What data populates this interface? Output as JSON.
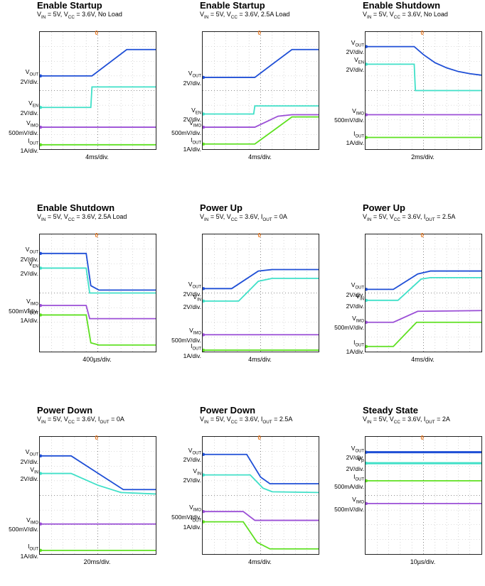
{
  "colors": {
    "vout": "#1f4fd6",
    "ven": "#40e0c8",
    "imo": "#9b4fd6",
    "iout": "#5ee020",
    "vp": "#5ee020",
    "trigger": "#e8761e"
  },
  "panels": [
    {
      "title": "Enable Startup",
      "sub": "VIN = 5V, VCC = 3.6V, No Load",
      "timebase": "4ms/div.",
      "trigger_label": "0",
      "labels": [
        {
          "name": "VOUT",
          "scale": "2V/div."
        },
        {
          "name": "VEN",
          "scale": "2V/div."
        },
        {
          "name": "VIMO",
          "scale": "500mV/div."
        },
        {
          "name": "IOUT",
          "scale": "1A/div."
        }
      ]
    },
    {
      "title": "Enable Startup",
      "sub": "VIN = 5V, VCC = 3.6V, 2.5A Load",
      "timebase": "4ms/div.",
      "trigger_label": "0",
      "labels": [
        {
          "name": "VOUT",
          "scale": "2V/div."
        },
        {
          "name": "VEN",
          "scale": "2V/div."
        },
        {
          "name": "VIMO",
          "scale": "500mV/div."
        },
        {
          "name": "IOUT",
          "scale": "1A/div."
        }
      ]
    },
    {
      "title": "Enable Shutdown",
      "sub": "VIN = 5V, VCC = 3.6V, No Load",
      "timebase": "2ms/div.",
      "trigger_label": "0",
      "labels": [
        {
          "name": "VOUT",
          "scale": "2V/div."
        },
        {
          "name": "VEN",
          "scale": "2V/div."
        },
        {
          "name": "VIMO",
          "scale": "500mV/div."
        },
        {
          "name": "IOUT",
          "scale": "1A/div."
        }
      ]
    },
    {
      "title": "Enable Shutdown",
      "sub": "VIN = 5V, VCC = 3.6V, 2.5A Load",
      "timebase": "400µs/div.",
      "trigger_label": "0",
      "labels": [
        {
          "name": "VOUT",
          "scale": "2V/div."
        },
        {
          "name": "VEN",
          "scale": "2V/div."
        },
        {
          "name": "VIMO",
          "scale": "500mV/div."
        },
        {
          "name": "IOUT",
          "scale": "1A/div."
        }
      ]
    },
    {
      "title": "Power Up",
      "sub": "VIN = 5V, VCC = 3.6V, IOUT = 0A",
      "timebase": "4ms/div.",
      "trigger_label": "0",
      "labels": [
        {
          "name": "VOUT",
          "scale": "2V/div."
        },
        {
          "name": "VIN",
          "scale": "2V/div."
        },
        {
          "name": "VIMO",
          "scale": "500mV/div."
        },
        {
          "name": "IOUT",
          "scale": "1A/div."
        }
      ]
    },
    {
      "title": "Power Up",
      "sub": "VIN = 5V, VCC = 3.6V, IOUT = 2.5A",
      "timebase": "4ms/div.",
      "trigger_label": "0",
      "labels": [
        {
          "name": "VOUT",
          "scale": "2V/div."
        },
        {
          "name": "VIN",
          "scale": "2V/div."
        },
        {
          "name": "VIMO",
          "scale": "500mV/div."
        },
        {
          "name": "IOUT",
          "scale": "1A/div."
        }
      ]
    },
    {
      "title": "Power Down",
      "sub": "VIN = 5V, VCC = 3.6V, IOUT = 0A",
      "timebase": "20ms/div.",
      "trigger_label": "0",
      "labels": [
        {
          "name": "VOUT",
          "scale": "2V/div."
        },
        {
          "name": "VIN",
          "scale": "2V/div."
        },
        {
          "name": "VIMO",
          "scale": "500mV/div."
        },
        {
          "name": "IOUT",
          "scale": "1A/div."
        }
      ]
    },
    {
      "title": "Power Down",
      "sub": "VIN = 5V, VCC = 3.6V, IOUT = 2.5A",
      "timebase": "4ms/div.",
      "trigger_label": "0",
      "labels": [
        {
          "name": "VOUT",
          "scale": "2V/div."
        },
        {
          "name": "VIN",
          "scale": "2V/div."
        },
        {
          "name": "VIMO",
          "scale": "500mV/div."
        },
        {
          "name": "IOUT",
          "scale": "1A/div."
        }
      ]
    },
    {
      "title": "Steady State",
      "sub": "VIN = 5V, VCC = 3.6V, IOUT = 2A",
      "timebase": "10µs/div.",
      "trigger_label": "0",
      "labels": [
        {
          "name": "VOUT",
          "scale": "2V/div."
        },
        {
          "name": "VP",
          "scale": "2V/div."
        },
        {
          "name": "VIMO",
          "scale": "500mV/div."
        },
        {
          "name": "IOUT",
          "scale": "500mA/div."
        }
      ]
    }
  ],
  "chart_data": [
    {
      "type": "line",
      "series": [
        {
          "name": "VOUT",
          "color": "vout",
          "points": [
            [
              0,
              2
            ],
            [
              4.5,
              2
            ],
            [
              7.5,
              5.6
            ],
            [
              10,
              5.6
            ]
          ]
        },
        {
          "name": "VEN",
          "color": "ven",
          "points": [
            [
              0,
              -2.3
            ],
            [
              4.4,
              -2.3
            ],
            [
              4.5,
              0.5
            ],
            [
              10,
              0.5
            ]
          ]
        },
        {
          "name": "VIMO",
          "color": "imo",
          "points": [
            [
              0,
              -5
            ],
            [
              10,
              -5
            ]
          ]
        },
        {
          "name": "IOUT",
          "color": "iout",
          "points": [
            [
              0,
              -7.4
            ],
            [
              10,
              -7.4
            ]
          ]
        }
      ]
    },
    {
      "type": "line",
      "series": [
        {
          "name": "VOUT",
          "color": "vout",
          "points": [
            [
              0,
              1.8
            ],
            [
              4.5,
              1.8
            ],
            [
              7.7,
              5.6
            ],
            [
              10,
              5.6
            ]
          ]
        },
        {
          "name": "VEN",
          "color": "ven",
          "points": [
            [
              0,
              -3.2
            ],
            [
              4.4,
              -3.2
            ],
            [
              4.5,
              -2.1
            ],
            [
              10,
              -2.1
            ]
          ]
        },
        {
          "name": "VIMO",
          "color": "imo",
          "points": [
            [
              0,
              -5
            ],
            [
              4.5,
              -5
            ],
            [
              6.5,
              -3.5
            ],
            [
              7.7,
              -3.3
            ],
            [
              10,
              -3.3
            ]
          ]
        },
        {
          "name": "IOUT",
          "color": "iout",
          "points": [
            [
              0,
              -7.3
            ],
            [
              4.5,
              -7.3
            ],
            [
              7.7,
              -3.6
            ],
            [
              10,
              -3.6
            ]
          ]
        }
      ]
    },
    {
      "type": "line",
      "series": [
        {
          "name": "VOUT",
          "color": "vout",
          "points": [
            [
              0,
              6
            ],
            [
              4.2,
              6
            ],
            [
              5,
              4.9
            ],
            [
              6,
              3.8
            ],
            [
              7,
              3.1
            ],
            [
              8,
              2.6
            ],
            [
              9,
              2.3
            ],
            [
              10,
              2.1
            ]
          ]
        },
        {
          "name": "VEN",
          "color": "ven",
          "points": [
            [
              0,
              3.6
            ],
            [
              4.2,
              3.6
            ],
            [
              4.3,
              0
            ],
            [
              10,
              0
            ]
          ]
        },
        {
          "name": "VIMO",
          "color": "imo",
          "points": [
            [
              0,
              -3.3
            ],
            [
              10,
              -3.3
            ]
          ]
        },
        {
          "name": "IOUT",
          "color": "iout",
          "points": [
            [
              0,
              -6.4
            ],
            [
              10,
              -6.4
            ]
          ]
        }
      ]
    },
    {
      "type": "line",
      "series": [
        {
          "name": "VOUT",
          "color": "vout",
          "points": [
            [
              0,
              5.4
            ],
            [
              4,
              5.4
            ],
            [
              4.4,
              1
            ],
            [
              5.1,
              0.4
            ],
            [
              10,
              0.4
            ]
          ]
        },
        {
          "name": "VEN",
          "color": "ven",
          "points": [
            [
              0,
              3.4
            ],
            [
              4,
              3.4
            ],
            [
              4.3,
              0
            ],
            [
              10,
              0
            ]
          ]
        },
        {
          "name": "VIMO",
          "color": "imo",
          "points": [
            [
              0,
              -1.7
            ],
            [
              4,
              -1.7
            ],
            [
              4.3,
              -3.5
            ],
            [
              10,
              -3.5
            ]
          ]
        },
        {
          "name": "IOUT",
          "color": "iout",
          "points": [
            [
              0,
              -3
            ],
            [
              4,
              -3
            ],
            [
              4.4,
              -6.8
            ],
            [
              5.1,
              -7.1
            ],
            [
              10,
              -7.1
            ]
          ]
        }
      ]
    },
    {
      "type": "line",
      "series": [
        {
          "name": "VOUT",
          "color": "vout",
          "points": [
            [
              0,
              0.6
            ],
            [
              2.5,
              0.6
            ],
            [
              4.8,
              3
            ],
            [
              6,
              3.2
            ],
            [
              10,
              3.2
            ]
          ]
        },
        {
          "name": "VIN",
          "color": "ven",
          "points": [
            [
              0,
              -1.1
            ],
            [
              3.1,
              -1.1
            ],
            [
              4.8,
              1.6
            ],
            [
              6,
              2
            ],
            [
              10,
              2
            ]
          ]
        },
        {
          "name": "VIMO",
          "color": "imo",
          "points": [
            [
              0,
              -5.7
            ],
            [
              10,
              -5.7
            ]
          ]
        },
        {
          "name": "IOUT",
          "color": "iout",
          "points": [
            [
              0,
              -7.8
            ],
            [
              10,
              -7.8
            ]
          ]
        }
      ]
    },
    {
      "type": "line",
      "series": [
        {
          "name": "VOUT",
          "color": "vout",
          "points": [
            [
              0,
              0.5
            ],
            [
              2.4,
              0.5
            ],
            [
              4.5,
              2.6
            ],
            [
              5.6,
              3
            ],
            [
              10,
              3
            ]
          ]
        },
        {
          "name": "VIN",
          "color": "ven",
          "points": [
            [
              0,
              -1
            ],
            [
              2.8,
              -1
            ],
            [
              4.8,
              1.9
            ],
            [
              5.6,
              2.1
            ],
            [
              10,
              2.1
            ]
          ]
        },
        {
          "name": "VIMO",
          "color": "imo",
          "points": [
            [
              0,
              -4
            ],
            [
              2.4,
              -4
            ],
            [
              4.5,
              -2.5
            ],
            [
              10,
              -2.4
            ]
          ]
        },
        {
          "name": "IOUT",
          "color": "iout",
          "points": [
            [
              0,
              -7.3
            ],
            [
              2.4,
              -7.3
            ],
            [
              4.4,
              -4
            ],
            [
              10,
              -4
            ]
          ]
        }
      ]
    },
    {
      "type": "line",
      "series": [
        {
          "name": "VOUT",
          "color": "vout",
          "points": [
            [
              0,
              5.4
            ],
            [
              2.7,
              5.4
            ],
            [
              7.2,
              0.8
            ],
            [
              10,
              0.8
            ]
          ]
        },
        {
          "name": "VIN",
          "color": "ven",
          "points": [
            [
              0,
              3
            ],
            [
              2.7,
              3
            ],
            [
              5,
              1.4
            ],
            [
              7,
              0.4
            ],
            [
              10,
              0.2
            ]
          ]
        },
        {
          "name": "VIMO",
          "color": "imo",
          "points": [
            [
              0,
              -3.9
            ],
            [
              10,
              -3.9
            ]
          ]
        },
        {
          "name": "IOUT",
          "color": "iout",
          "points": [
            [
              0,
              -7.5
            ],
            [
              10,
              -7.5
            ]
          ]
        }
      ]
    },
    {
      "type": "line",
      "series": [
        {
          "name": "VOUT",
          "color": "vout",
          "points": [
            [
              0,
              5.6
            ],
            [
              3.8,
              5.6
            ],
            [
              5,
              2.5
            ],
            [
              5.8,
              1.6
            ],
            [
              10,
              1.6
            ]
          ]
        },
        {
          "name": "VIN",
          "color": "ven",
          "points": [
            [
              0,
              2.8
            ],
            [
              4.1,
              2.8
            ],
            [
              5.2,
              1
            ],
            [
              6,
              0.5
            ],
            [
              10,
              0.4
            ]
          ]
        },
        {
          "name": "VIMO",
          "color": "imo",
          "points": [
            [
              0,
              -2.2
            ],
            [
              3.5,
              -2.2
            ],
            [
              4.5,
              -3.4
            ],
            [
              10,
              -3.4
            ]
          ]
        },
        {
          "name": "IOUT",
          "color": "iout",
          "points": [
            [
              0,
              -3.6
            ],
            [
              3.5,
              -3.6
            ],
            [
              4.7,
              -6.4
            ],
            [
              5.8,
              -7.3
            ],
            [
              10,
              -7.3
            ]
          ]
        }
      ]
    },
    {
      "type": "line",
      "series": [
        {
          "name": "VOUT",
          "color": "vout",
          "points": [
            [
              0,
              5.9
            ],
            [
              10,
              5.9
            ]
          ]
        },
        {
          "name": "VP",
          "color": "ven",
          "points": [
            [
              0,
              4.4
            ],
            [
              10,
              4.4
            ]
          ]
        },
        {
          "name": "VIMO",
          "color": "imo",
          "points": [
            [
              0,
              -1.1
            ],
            [
              10,
              -1.1
            ]
          ]
        },
        {
          "name": "IOUT",
          "color": "iout",
          "points": [
            [
              0,
              2
            ],
            [
              10,
              2
            ]
          ]
        }
      ]
    }
  ]
}
